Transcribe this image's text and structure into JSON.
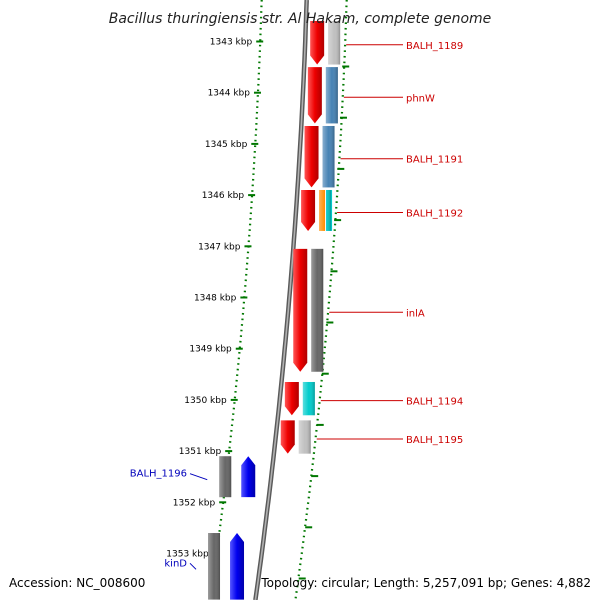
{
  "title": "Bacillus thuringiensis str. Al Hakam, complete genome",
  "footer": {
    "accession": "Accession: NC_008600",
    "summary": "Topology: circular; Length: 5,257,091 bp; Genes: 4,882"
  },
  "colors": {
    "forward_label": "#cc0000",
    "reverse_label": "#0000bb",
    "ruler_tick": "#007700",
    "backbone": "#888888"
  },
  "ruler": [
    {
      "kbp": 1343,
      "label": "1343 kbp"
    },
    {
      "kbp": 1344,
      "label": "1344 kbp"
    },
    {
      "kbp": 1345,
      "label": "1345 kbp"
    },
    {
      "kbp": 1346,
      "label": "1346 kbp"
    },
    {
      "kbp": 1347,
      "label": "1347 kbp"
    },
    {
      "kbp": 1348,
      "label": "1348 kbp"
    },
    {
      "kbp": 1349,
      "label": "1349 kbp"
    },
    {
      "kbp": 1350,
      "label": "1350 kbp"
    },
    {
      "kbp": 1351,
      "label": "1351 kbp"
    },
    {
      "kbp": 1352,
      "label": "1352 kbp"
    },
    {
      "kbp": 1353,
      "label": "1353 kbp"
    }
  ],
  "genes": [
    {
      "name": "BALH_1189",
      "strand": "+",
      "start": 1342.6,
      "end": 1343.45,
      "cog_color": "#c0c0c0"
    },
    {
      "name": "phnW",
      "strand": "+",
      "start": 1343.5,
      "end": 1344.6,
      "cog_color": "#4682b4"
    },
    {
      "name": "BALH_1191",
      "strand": "+",
      "start": 1344.65,
      "end": 1345.85,
      "cog_color": "#4682b4"
    },
    {
      "name": "BALH_1192",
      "strand": "+",
      "start": 1345.9,
      "end": 1346.7,
      "cog_color": "#00cccc",
      "cog_color2": "#ff8c00"
    },
    {
      "name": "inlA",
      "strand": "+",
      "start": 1347.05,
      "end": 1349.45,
      "cog_color": "#666666"
    },
    {
      "name": "BALH_1194",
      "strand": "+",
      "start": 1349.65,
      "end": 1350.3,
      "cog_color": "#00cccc"
    },
    {
      "name": "BALH_1195",
      "strand": "+",
      "start": 1350.4,
      "end": 1351.05,
      "cog_color": "#c0c0c0"
    },
    {
      "name": "BALH_1196",
      "strand": "-",
      "start": 1351.1,
      "end": 1351.9,
      "cog_color": "#666666"
    },
    {
      "name": "kinD",
      "strand": "-",
      "start": 1352.6,
      "end": 1353.9,
      "cog_color": "#666666"
    }
  ]
}
